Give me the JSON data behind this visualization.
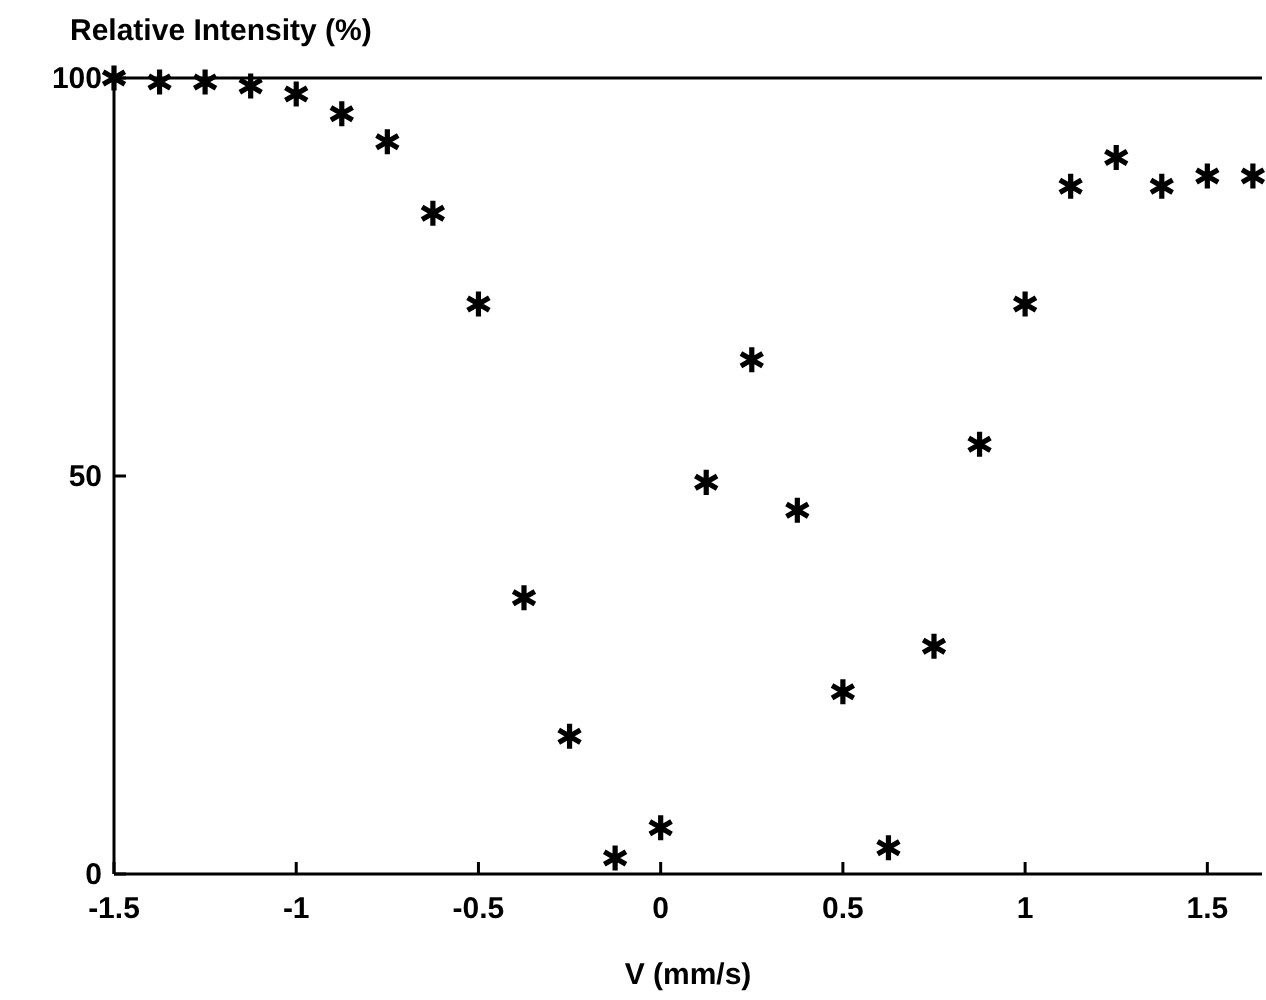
{
  "chart_data": {
    "type": "scatter",
    "xlabel": "V (mm/s)",
    "ylabel": "Relative Intensity (%)",
    "x": [
      -1.5,
      -1.375,
      -1.25,
      -1.125,
      -1,
      -0.875,
      -0.75,
      -0.625,
      -0.5,
      -0.375,
      -0.25,
      -0.125,
      0,
      0.125,
      0.25,
      0.375,
      0.5,
      0.625,
      0.75,
      0.875,
      1,
      1.125,
      1.25,
      1.375,
      1.5,
      1.625
    ],
    "series": [
      {
        "color": "#000000",
        "values": [
          100,
          99.5,
          99.5,
          99,
          98,
          95.5,
          92,
          83,
          71.6,
          34.7,
          17.3,
          2,
          5.8,
          49.2,
          64.6,
          45.7,
          22.9,
          3.3,
          28.6,
          54,
          71.6,
          86.4,
          90,
          86.4,
          87.7,
          87.7
        ]
      }
    ],
    "xlim": [
      -1.5,
      1.65
    ],
    "ylim": [
      0,
      100
    ],
    "xticks": [
      -1.5,
      -1,
      -0.5,
      0,
      0.5,
      1,
      1.5
    ],
    "yticks": [
      0,
      50,
      100
    ],
    "marker": "cross",
    "grid": false
  }
}
